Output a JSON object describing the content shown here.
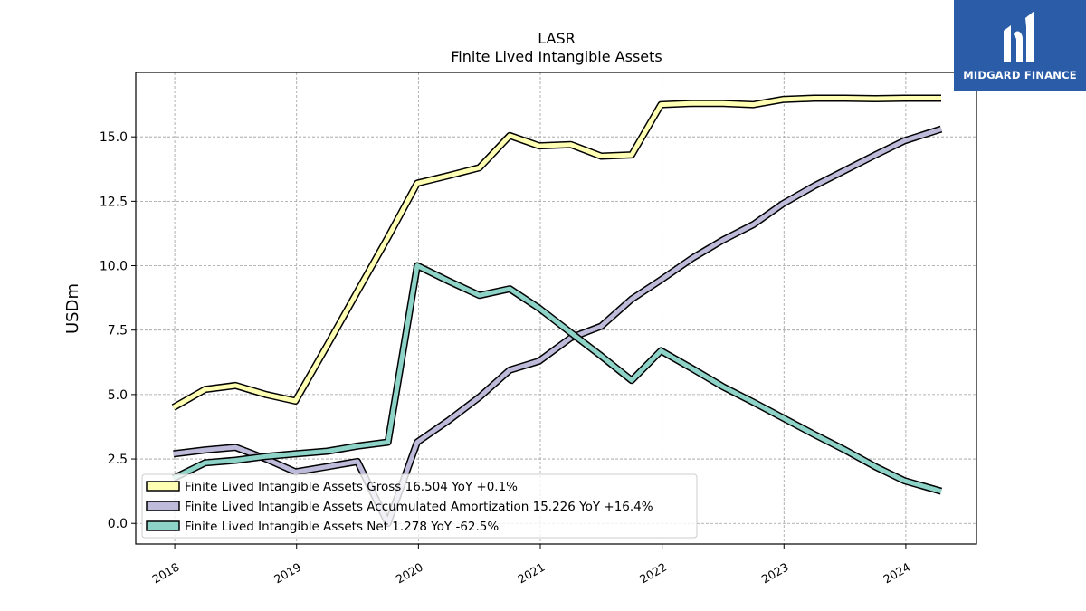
{
  "brand": {
    "name": "MIDGARD FINANCE",
    "background": "#2b5ca8"
  },
  "chart_data": {
    "type": "line",
    "title": "LASR",
    "subtitle": "Finite Lived Intangible Assets",
    "ylabel": "USDm",
    "xlabel": "",
    "ylim": [
      -0.8,
      17.5
    ],
    "xlim": [
      2017.68,
      2024.58
    ],
    "yticks": [
      0.0,
      2.5,
      5.0,
      7.5,
      10.0,
      12.5,
      15.0
    ],
    "ytick_labels": [
      "0.0",
      "2.5",
      "5.0",
      "7.5",
      "10.0",
      "12.5",
      "15.0"
    ],
    "xticks": [
      2018,
      2019,
      2020,
      2021,
      2022,
      2023,
      2024
    ],
    "xtick_labels": [
      "2018",
      "2019",
      "2020",
      "2021",
      "2022",
      "2023",
      "2024"
    ],
    "grid": true,
    "legend_position": "bottom-left",
    "x": [
      2017.99,
      2018.25,
      2018.5,
      2018.75,
      2018.99,
      2019.25,
      2019.5,
      2019.75,
      2019.99,
      2020.25,
      2020.5,
      2020.75,
      2020.99,
      2021.25,
      2021.5,
      2021.75,
      2021.99,
      2022.25,
      2022.5,
      2022.75,
      2022.99,
      2023.25,
      2023.5,
      2023.75,
      2023.99,
      2024.29
    ],
    "series": [
      {
        "name": "Finite Lived Intangible Assets Gross",
        "legend_label": "Finite Lived Intangible Assets Gross  16.504 YoY +0.1%",
        "color": "#ffffb3",
        "values": [
          4.5,
          5.2,
          5.35,
          5.0,
          4.75,
          6.9,
          9.0,
          11.1,
          13.2,
          13.5,
          13.8,
          15.05,
          14.65,
          14.7,
          14.25,
          14.3,
          16.25,
          16.3,
          16.3,
          16.25,
          16.45,
          16.5,
          16.5,
          16.48,
          16.5,
          16.5
        ]
      },
      {
        "name": "Finite Lived Intangible Assets Accumulated Amortization",
        "legend_label": "Finite Lived Intangible Assets Accumulated Amortization  15.226 YoY +16.4%",
        "color": "#bebada",
        "values": [
          2.7,
          2.85,
          2.95,
          2.5,
          2.0,
          2.2,
          2.4,
          0.0,
          3.15,
          4.0,
          4.9,
          5.95,
          6.3,
          7.2,
          7.65,
          8.7,
          9.45,
          10.3,
          11.0,
          11.6,
          12.4,
          13.1,
          13.7,
          14.3,
          14.85,
          15.3
        ]
      },
      {
        "name": "Finite Lived Intangible Assets Net",
        "legend_label": "Finite Lived Intangible Assets Net  1.278 YoY -62.5%",
        "color": "#8dd3c7",
        "values": [
          1.75,
          2.35,
          2.45,
          2.6,
          2.7,
          2.8,
          3.0,
          3.15,
          10.0,
          9.4,
          8.85,
          9.1,
          8.35,
          7.4,
          6.5,
          5.55,
          6.7,
          6.0,
          5.3,
          4.7,
          4.1,
          3.45,
          2.85,
          2.2,
          1.65,
          1.25
        ]
      }
    ]
  }
}
